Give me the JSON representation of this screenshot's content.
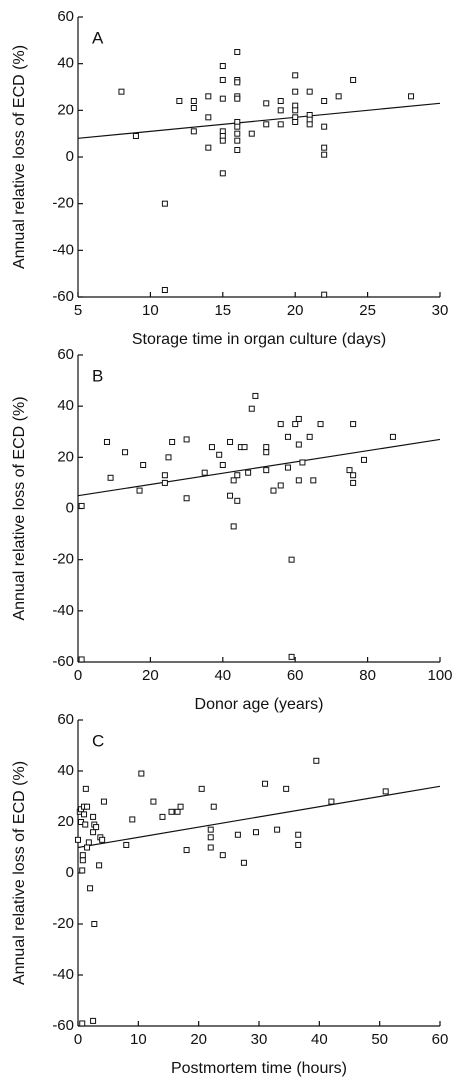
{
  "chart_data": [
    {
      "type": "scatter",
      "label": "A",
      "xlabel": "Storage time in organ culture (days)",
      "ylabel": "Annual relative loss of ECD (%)",
      "xlim": [
        5,
        30
      ],
      "xticks": [
        5,
        10,
        15,
        20,
        25,
        30
      ],
      "ylim": [
        -60,
        60
      ],
      "yticks": [
        -60,
        -40,
        -20,
        0,
        20,
        40,
        60
      ],
      "x": [
        8,
        9,
        11,
        11,
        12,
        13,
        13,
        13,
        14,
        14,
        14,
        15,
        15,
        15,
        15,
        15,
        15,
        15,
        16,
        16,
        16,
        16,
        16,
        16,
        16,
        16,
        16,
        16,
        17,
        18,
        18,
        19,
        19,
        19,
        20,
        20,
        20,
        20,
        20,
        20,
        21,
        21,
        21,
        21,
        22,
        22,
        22,
        22,
        22,
        23,
        24,
        28
      ],
      "values": [
        28,
        9,
        -20,
        -57,
        24,
        24,
        21,
        11,
        26,
        17,
        4,
        39,
        33,
        25,
        11,
        9,
        7,
        -7,
        45,
        33,
        32,
        26,
        25,
        15,
        13,
        10,
        7,
        3,
        10,
        23,
        14,
        24,
        20,
        14,
        35,
        28,
        22,
        20,
        17,
        15,
        28,
        18,
        16,
        14,
        24,
        13,
        4,
        1,
        -59,
        26,
        33,
        26
      ],
      "fit_line": {
        "x": [
          5,
          30
        ],
        "values": [
          8,
          23
        ]
      }
    },
    {
      "type": "scatter",
      "label": "B",
      "xlabel": "Donor age (years)",
      "ylabel": "Annual relative loss of ECD (%)",
      "xlim": [
        0,
        100
      ],
      "xticks": [
        0,
        20,
        40,
        60,
        80,
        100
      ],
      "ylim": [
        -60,
        60
      ],
      "yticks": [
        -60,
        -40,
        -20,
        0,
        20,
        40,
        60
      ],
      "x": [
        1,
        1,
        8,
        9,
        13,
        17,
        18,
        24,
        24,
        25,
        26,
        30,
        30,
        35,
        37,
        39,
        40,
        42,
        42,
        43,
        43,
        44,
        44,
        45,
        46,
        47,
        48,
        49,
        52,
        52,
        52,
        54,
        56,
        56,
        58,
        58,
        59,
        59,
        60,
        61,
        61,
        61,
        62,
        64,
        65,
        67,
        75,
        76,
        76,
        76,
        79,
        87
      ],
      "values": [
        1,
        -59,
        26,
        12,
        22,
        7,
        17,
        13,
        10,
        20,
        26,
        27,
        4,
        14,
        24,
        21,
        17,
        26,
        5,
        -7,
        11,
        3,
        13,
        24,
        24,
        14,
        39,
        44,
        24,
        22,
        15,
        7,
        33,
        9,
        28,
        16,
        -20,
        -58,
        33,
        35,
        25,
        11,
        18,
        28,
        11,
        33,
        15,
        13,
        10,
        33,
        19,
        28
      ],
      "fit_line": {
        "x": [
          0,
          100
        ],
        "values": [
          5,
          27
        ]
      }
    },
    {
      "type": "scatter",
      "label": "C",
      "xlabel": "Postmortem time (hours)",
      "ylabel": "Annual relative loss of ECD (%)",
      "xlim": [
        0,
        60
      ],
      "xticks": [
        0,
        10,
        20,
        30,
        40,
        50,
        60
      ],
      "ylim": [
        -60,
        60
      ],
      "yticks": [
        -60,
        -40,
        -20,
        0,
        20,
        40,
        60
      ],
      "x": [
        0,
        0.3,
        0.5,
        0.5,
        0.7,
        0.7,
        0.8,
        0.8,
        1,
        1,
        1.2,
        1.3,
        1.5,
        1.5,
        1.8,
        2,
        2.5,
        2.5,
        2.7,
        2.7,
        2.5,
        3,
        3.5,
        3.7,
        4,
        4.3,
        8,
        9,
        10.5,
        12.5,
        14,
        15.5,
        16.5,
        17,
        18,
        20.5,
        22,
        22,
        22,
        22.5,
        24,
        26.5,
        27.5,
        29.5,
        31,
        33,
        34.5,
        36.5,
        36.5,
        39.5,
        42,
        51
      ],
      "values": [
        13,
        24,
        20,
        25,
        1,
        -59,
        5,
        7,
        23,
        26,
        19,
        33,
        26,
        10,
        12,
        -6,
        22,
        16,
        19,
        -20,
        -58,
        18,
        3,
        14,
        13,
        28,
        11,
        21,
        39,
        28,
        22,
        24,
        24,
        26,
        9,
        33,
        17,
        14,
        10,
        26,
        7,
        15,
        4,
        16,
        35,
        17,
        33,
        15,
        11,
        44,
        28,
        32
      ],
      "fit_line": {
        "x": [
          0,
          60
        ],
        "values": [
          10,
          34
        ]
      }
    }
  ]
}
